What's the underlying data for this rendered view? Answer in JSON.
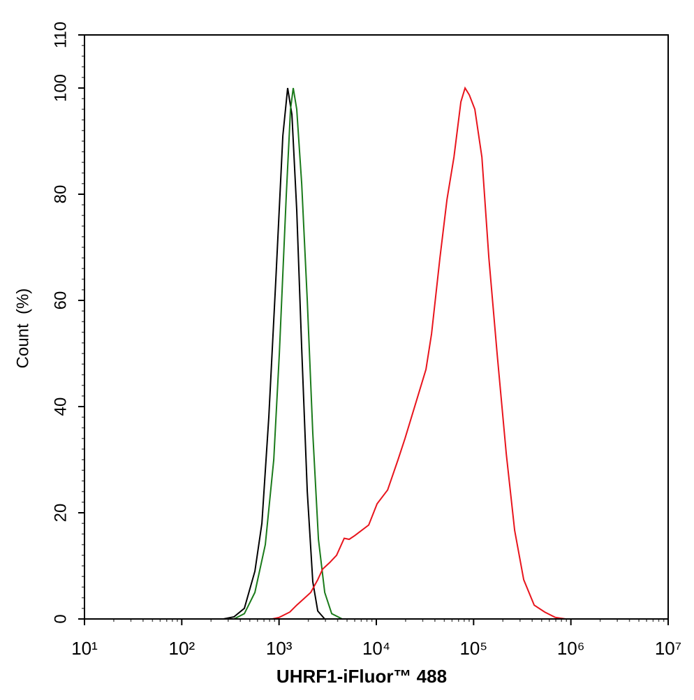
{
  "chart_data": {
    "type": "line",
    "x_label": "UHRF1-iFluor™ 488",
    "y_label": "Count  (%)",
    "x_scale": "log",
    "xlim": [
      10,
      10000000
    ],
    "xticks": [
      {
        "value": 10,
        "label": "10¹"
      },
      {
        "value": 100,
        "label": "10²"
      },
      {
        "value": 1000,
        "label": "10³"
      },
      {
        "value": 10000,
        "label": "10⁴"
      },
      {
        "value": 100000,
        "label": "10⁵"
      },
      {
        "value": 1000000,
        "label": "10⁶"
      },
      {
        "value": 10000000,
        "label": "10⁷"
      }
    ],
    "ylim": [
      0,
      110
    ],
    "yticks": [
      0,
      20,
      40,
      60,
      80,
      100,
      110
    ],
    "series": [
      {
        "color": "#000000",
        "x": [
          10,
          268,
          344,
          440,
          565,
          666,
          785,
          927,
          1094,
          1227,
          1355,
          1521,
          1709,
          1950,
          2223,
          2500,
          2951,
          10000000
        ],
        "values": [
          0,
          0,
          0.4,
          2,
          9,
          18,
          38,
          64,
          91,
          100,
          95,
          77,
          51,
          24,
          7,
          1.5,
          0,
          0
        ]
      },
      {
        "color": "#1a7a1a",
        "x": [
          344,
          440,
          565,
          723,
          882,
          1007,
          1188,
          1312,
          1400,
          1521,
          1709,
          1950,
          2223,
          2541,
          2951,
          3478,
          4457
        ],
        "values": [
          0,
          1,
          5,
          14,
          30,
          50,
          80,
          96,
          100,
          96,
          82,
          60,
          35,
          15,
          5,
          1,
          0
        ]
      },
      {
        "color": "#e8141c",
        "x": [
          853,
          1007,
          1291,
          1521,
          1795,
          2118,
          2500,
          2805,
          3311,
          3906,
          4677,
          5258,
          5998,
          6730,
          8353,
          10190,
          13060,
          16710,
          19720,
          25290,
          32360,
          36980,
          45080,
          53210,
          62810,
          73960,
          81700,
          90360,
          103000,
          121600,
          143500,
          175000,
          216800,
          264200,
          327300,
          419800,
          538300,
          688700,
          883100
        ],
        "values": [
          0,
          0.3,
          1.3,
          2.6,
          3.8,
          5,
          7.4,
          9.4,
          10.6,
          12,
          15.2,
          15,
          15.7,
          16.4,
          17.7,
          21.7,
          24.3,
          30,
          34,
          40.5,
          47,
          53.7,
          68,
          79,
          87,
          97.4,
          100,
          98.7,
          96,
          87,
          68,
          49.7,
          31,
          16.7,
          7.4,
          2.6,
          1.3,
          0.3,
          0
        ]
      }
    ]
  }
}
